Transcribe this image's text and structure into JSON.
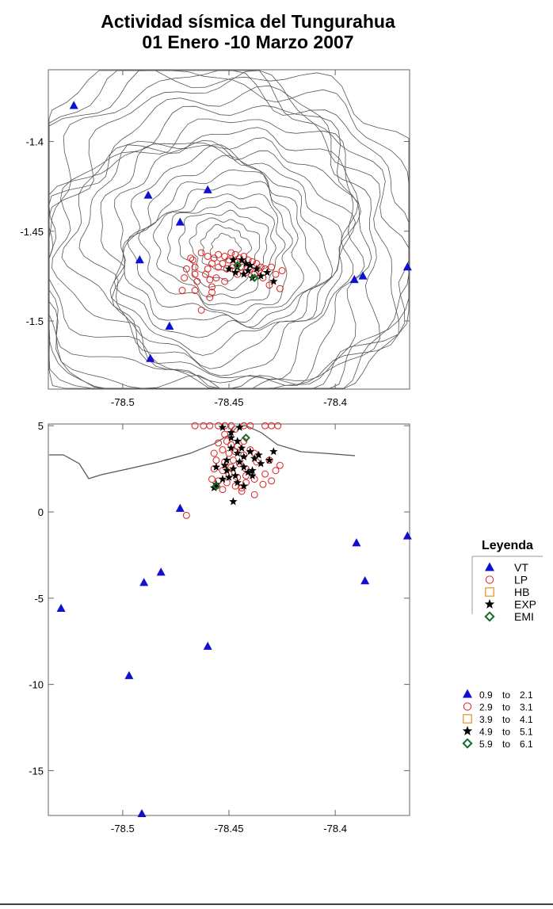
{
  "title": {
    "line1": "Actividad sísmica del Tungurahua",
    "line2": "01 Enero -10 Marzo 2007"
  },
  "colors": {
    "VT": "#1010d0",
    "LP": "#dd2020",
    "HB": "#e89020",
    "EXP": "#000000",
    "EMI": "#1a6a2a",
    "contour": "#555555"
  },
  "legend": {
    "title": "Leyenda",
    "items": [
      {
        "key": "VT",
        "symbol": "triangle",
        "label": "VT"
      },
      {
        "key": "LP",
        "symbol": "circle",
        "label": "LP"
      },
      {
        "key": "HB",
        "symbol": "square",
        "label": "HB"
      },
      {
        "key": "EXP",
        "symbol": "star",
        "label": "EXP"
      },
      {
        "key": "EMI",
        "symbol": "diamond",
        "label": "EMI"
      }
    ],
    "ranges": [
      {
        "key": "VT",
        "symbol": "triangle",
        "from": "0.9",
        "to": "2.1",
        "word": "to"
      },
      {
        "key": "LP",
        "symbol": "circle",
        "from": "2.9",
        "to": "3.1",
        "word": "to"
      },
      {
        "key": "HB",
        "symbol": "square",
        "from": "3.9",
        "to": "4.1",
        "word": "to"
      },
      {
        "key": "EXP",
        "symbol": "star",
        "from": "4.9",
        "to": "5.1",
        "word": "to"
      },
      {
        "key": "EMI",
        "symbol": "diamond",
        "from": "5.9",
        "to": "6.1",
        "word": "to"
      }
    ]
  },
  "chart_data": [
    {
      "type": "scatter",
      "panel": "map",
      "xlim": [
        -78.535,
        -78.365
      ],
      "ylim": [
        -1.538,
        -1.36
      ],
      "x_ticks": [
        "-78.5",
        "-78.45",
        "-78.4"
      ],
      "x_tick_values": [
        -78.5,
        -78.45,
        -78.4
      ],
      "y_ticks": [
        "-1.4",
        "-1.45",
        "-1.5"
      ],
      "y_tick_values": [
        -1.4,
        -1.45,
        -1.5
      ],
      "series": [
        {
          "key": "VT",
          "points": [
            [
              -78.523,
              -1.38
            ],
            [
              -78.488,
              -1.43
            ],
            [
              -78.46,
              -1.427
            ],
            [
              -78.473,
              -1.445
            ],
            [
              -78.492,
              -1.466
            ],
            [
              -78.366,
              -1.47
            ],
            [
              -78.387,
              -1.475
            ],
            [
              -78.391,
              -1.477
            ],
            [
              -78.478,
              -1.503
            ],
            [
              -78.487,
              -1.521
            ]
          ]
        },
        {
          "key": "LP",
          "points": [
            [
              -78.455,
              -1.463
            ],
            [
              -78.452,
              -1.464
            ],
            [
              -78.449,
              -1.462
            ],
            [
              -78.447,
              -1.463
            ],
            [
              -78.445,
              -1.465
            ],
            [
              -78.443,
              -1.464
            ],
            [
              -78.45,
              -1.466
            ],
            [
              -78.446,
              -1.467
            ],
            [
              -78.441,
              -1.466
            ],
            [
              -78.439,
              -1.467
            ],
            [
              -78.437,
              -1.468
            ],
            [
              -78.435,
              -1.47
            ],
            [
              -78.453,
              -1.468
            ],
            [
              -78.448,
              -1.469
            ],
            [
              -78.444,
              -1.47
            ],
            [
              -78.44,
              -1.471
            ],
            [
              -78.436,
              -1.472
            ],
            [
              -78.433,
              -1.471
            ],
            [
              -78.43,
              -1.47
            ],
            [
              -78.451,
              -1.471
            ],
            [
              -78.447,
              -1.472
            ],
            [
              -78.442,
              -1.473
            ],
            [
              -78.438,
              -1.474
            ],
            [
              -78.446,
              -1.474
            ],
            [
              -78.455,
              -1.47
            ],
            [
              -78.457,
              -1.465
            ],
            [
              -78.458,
              -1.468
            ],
            [
              -78.46,
              -1.471
            ],
            [
              -78.461,
              -1.474
            ],
            [
              -78.466,
              -1.47
            ],
            [
              -78.467,
              -1.466
            ],
            [
              -78.463,
              -1.462
            ],
            [
              -78.46,
              -1.464
            ],
            [
              -78.466,
              -1.474
            ],
            [
              -78.465,
              -1.478
            ],
            [
              -78.459,
              -1.477
            ],
            [
              -78.456,
              -1.476
            ],
            [
              -78.452,
              -1.478
            ],
            [
              -78.458,
              -1.481
            ],
            [
              -78.458,
              -1.484
            ],
            [
              -78.459,
              -1.487
            ],
            [
              -78.466,
              -1.483
            ],
            [
              -78.472,
              -1.483
            ],
            [
              -78.471,
              -1.476
            ],
            [
              -78.47,
              -1.471
            ],
            [
              -78.468,
              -1.465
            ],
            [
              -78.434,
              -1.476
            ],
            [
              -78.431,
              -1.48
            ],
            [
              -78.426,
              -1.482
            ],
            [
              -78.428,
              -1.474
            ],
            [
              -78.425,
              -1.472
            ],
            [
              -78.463,
              -1.494
            ]
          ]
        },
        {
          "key": "EXP",
          "points": [
            [
              -78.448,
              -1.466
            ],
            [
              -78.444,
              -1.466
            ],
            [
              -78.442,
              -1.468
            ],
            [
              -78.446,
              -1.47
            ],
            [
              -78.45,
              -1.471
            ],
            [
              -78.441,
              -1.472
            ],
            [
              -78.437,
              -1.471
            ],
            [
              -78.443,
              -1.474
            ],
            [
              -78.439,
              -1.476
            ],
            [
              -78.435,
              -1.475
            ],
            [
              -78.432,
              -1.473
            ],
            [
              -78.429,
              -1.478
            ],
            [
              -78.447,
              -1.473
            ],
            [
              -78.44,
              -1.469
            ]
          ]
        },
        {
          "key": "EMI",
          "points": [
            [
              -78.438,
              -1.476
            ],
            [
              -78.446,
              -1.469
            ]
          ]
        }
      ]
    },
    {
      "type": "scatter",
      "panel": "depth",
      "xlim": [
        -78.535,
        -78.365
      ],
      "ylim": [
        -17.6,
        5.1
      ],
      "x_ticks": [
        "-78.5",
        "-78.45",
        "-78.4"
      ],
      "x_tick_values": [
        -78.5,
        -78.45,
        -78.4
      ],
      "y_ticks": [
        "5",
        "0",
        "-5",
        "-10",
        "-15"
      ],
      "y_tick_values": [
        5,
        0,
        -5,
        -10,
        -15
      ],
      "series": [
        {
          "key": "VT",
          "points": [
            [
              -78.529,
              -5.6
            ],
            [
              -78.497,
              -9.5
            ],
            [
              -78.491,
              -17.5
            ],
            [
              -78.49,
              -4.1
            ],
            [
              -78.482,
              -3.5
            ],
            [
              -78.473,
              0.2
            ],
            [
              -78.46,
              -7.8
            ],
            [
              -78.39,
              -1.8
            ],
            [
              -78.386,
              -4.0
            ],
            [
              -78.366,
              -1.4
            ]
          ]
        },
        {
          "key": "LP",
          "points": [
            [
              -78.47,
              -0.2
            ],
            [
              -78.466,
              5.0
            ],
            [
              -78.462,
              5.0
            ],
            [
              -78.459,
              5.0
            ],
            [
              -78.455,
              5.0
            ],
            [
              -78.452,
              5.0
            ],
            [
              -78.449,
              5.0
            ],
            [
              -78.443,
              5.0
            ],
            [
              -78.44,
              5.0
            ],
            [
              -78.433,
              5.0
            ],
            [
              -78.43,
              5.0
            ],
            [
              -78.427,
              5.0
            ],
            [
              -78.455,
              4.0
            ],
            [
              -78.452,
              4.5
            ],
            [
              -78.447,
              4.8
            ],
            [
              -78.443,
              4.1
            ],
            [
              -78.438,
              3.4
            ],
            [
              -78.431,
              3.0
            ],
            [
              -78.428,
              2.4
            ],
            [
              -78.453,
              3.6
            ],
            [
              -78.45,
              3.4
            ],
            [
              -78.448,
              3.0
            ],
            [
              -78.445,
              2.8
            ],
            [
              -78.442,
              2.5
            ],
            [
              -78.437,
              2.9
            ],
            [
              -78.433,
              2.2
            ],
            [
              -78.45,
              2.2
            ],
            [
              -78.446,
              2.0
            ],
            [
              -78.442,
              1.7
            ],
            [
              -78.438,
              1.0
            ],
            [
              -78.453,
              1.3
            ],
            [
              -78.451,
              1.7
            ],
            [
              -78.447,
              1.5
            ],
            [
              -78.444,
              1.2
            ],
            [
              -78.449,
              2.6
            ],
            [
              -78.452,
              2.9
            ],
            [
              -78.44,
              3.6
            ],
            [
              -78.443,
              3.3
            ],
            [
              -78.446,
              3.8
            ],
            [
              -78.449,
              3.9
            ],
            [
              -78.451,
              4.1
            ],
            [
              -78.457,
              2.5
            ],
            [
              -78.458,
              1.9
            ],
            [
              -78.456,
              1.5
            ],
            [
              -78.457,
              3.4
            ],
            [
              -78.456,
              3.0
            ],
            [
              -78.442,
              2.1
            ],
            [
              -78.438,
              1.9
            ],
            [
              -78.434,
              1.6
            ],
            [
              -78.43,
              1.8
            ],
            [
              -78.426,
              2.7
            ],
            [
              -78.444,
              1.4
            ],
            [
              -78.455,
              1.8
            ],
            [
              -78.453,
              2.4
            ],
            [
              -78.447,
              3.5
            ]
          ]
        },
        {
          "key": "EXP",
          "points": [
            [
              -78.453,
              4.9
            ],
            [
              -78.449,
              4.6
            ],
            [
              -78.445,
              4.9
            ],
            [
              -78.449,
              4.3
            ],
            [
              -78.446,
              4.1
            ],
            [
              -78.449,
              3.7
            ],
            [
              -78.446,
              3.4
            ],
            [
              -78.443,
              3.2
            ],
            [
              -78.44,
              3.5
            ],
            [
              -78.438,
              3.1
            ],
            [
              -78.436,
              3.3
            ],
            [
              -78.445,
              2.9
            ],
            [
              -78.448,
              2.5
            ],
            [
              -78.451,
              2.4
            ],
            [
              -78.443,
              2.6
            ],
            [
              -78.441,
              2.3
            ],
            [
              -78.447,
              2.1
            ],
            [
              -78.45,
              2.0
            ],
            [
              -78.453,
              1.9
            ],
            [
              -78.456,
              1.6
            ],
            [
              -78.457,
              1.4
            ],
            [
              -78.446,
              1.7
            ],
            [
              -78.443,
              1.5
            ],
            [
              -78.439,
              2.1
            ],
            [
              -78.431,
              3.0
            ],
            [
              -78.429,
              3.5
            ],
            [
              -78.444,
              3.7
            ],
            [
              -78.451,
              3.0
            ],
            [
              -78.452,
              2.7
            ],
            [
              -78.448,
              0.6
            ],
            [
              -78.456,
              2.6
            ],
            [
              -78.435,
              2.8
            ],
            [
              -78.439,
              2.4
            ]
          ]
        },
        {
          "key": "EMI",
          "points": [
            [
              -78.442,
              4.3
            ],
            [
              -78.456,
              1.5
            ]
          ]
        }
      ]
    }
  ]
}
